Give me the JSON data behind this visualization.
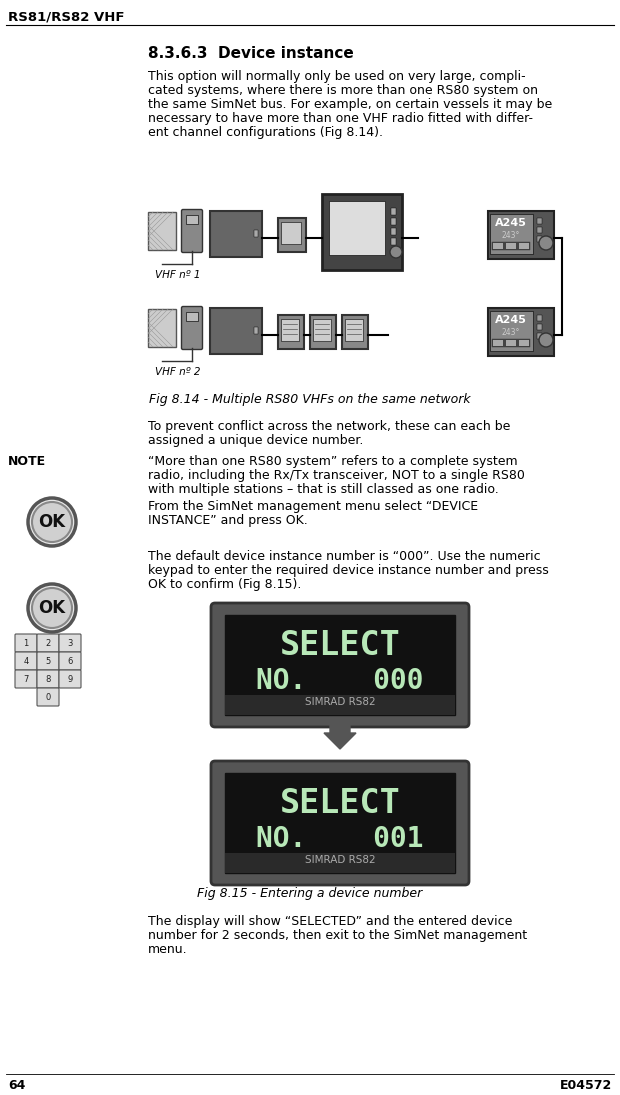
{
  "page_title": "RS81/RS82 VHF",
  "page_number": "64",
  "page_code": "E04572",
  "section_title": "8.3.6.3  Device instance",
  "body_text": [
    "This option will normally only be used on very large, compli-",
    "cated systems, where there is more than one RS80 system on",
    "the same SimNet bus. For example, on certain vessels it may be",
    "necessary to have more than one VHF radio fitted with differ-",
    "ent channel configurations (Fig 8.14)."
  ],
  "fig1_caption": "Fig 8.14 - Multiple RS80 VHFs on the same network",
  "para1": [
    "To prevent conflict across the network, these can each be",
    "assigned a unique device number."
  ],
  "note_label": "NOTE",
  "note_text": [
    "“More than one RS80 system” refers to a complete system",
    "radio, including the Rx/Tx transceiver, NOT to a single RS80",
    "with multiple stations – that is still classed as one radio."
  ],
  "para2": [
    "From the SimNet management menu select “DEVICE",
    "INSTANCE” and press OK."
  ],
  "para3": [
    "The default device instance number is “000”. Use the numeric",
    "keypad to enter the required device instance number and press",
    "OK to confirm (Fig 8.15)."
  ],
  "screen1_line1": "SELECT",
  "screen1_line2": "NO.    000",
  "screen1_brand": "SIMRAD RS82",
  "screen2_line1": "SELECT",
  "screen2_line2": "NO.    001",
  "screen2_brand": "SIMRAD RS82",
  "fig2_caption": "Fig 8.15 - Entering a device number",
  "para4": [
    "The display will show “SELECTED” and the entered device",
    "number for 2 seconds, then exit to the SimNet management",
    "menu."
  ],
  "bg_color": "#ffffff",
  "text_color": "#000000",
  "vhf1_label": "VHF nº 1",
  "vhf2_label": "VHF nº 2"
}
